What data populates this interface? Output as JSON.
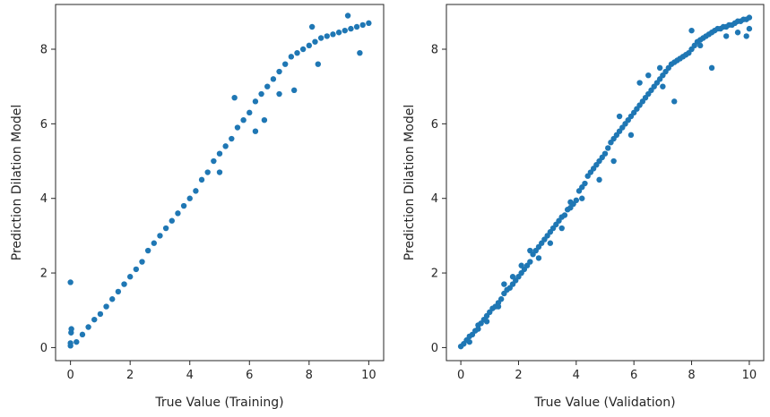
{
  "chart_data": [
    {
      "type": "scatter",
      "xlabel": "True Value (Training)",
      "ylabel": "Prediction Dilation Model",
      "xlim": [
        -0.5,
        10.5
      ],
      "ylim": [
        -0.35,
        9.2
      ],
      "xticks": [
        0,
        2,
        4,
        6,
        8,
        10
      ],
      "yticks": [
        0,
        2,
        4,
        6,
        8
      ],
      "xtick_labels": [
        "0",
        "2",
        "4",
        "6",
        "8",
        "10"
      ],
      "ytick_labels": [
        "0",
        "2",
        "4",
        "6",
        "8"
      ],
      "grid": false,
      "series": [
        {
          "color": "#1f77b4",
          "points": [
            [
              0.0,
              0.05
            ],
            [
              0.0,
              0.12
            ],
            [
              0.02,
              0.4
            ],
            [
              0.03,
              0.5
            ],
            [
              0.0,
              1.75
            ],
            [
              0.2,
              0.15
            ],
            [
              0.4,
              0.35
            ],
            [
              0.6,
              0.55
            ],
            [
              0.8,
              0.75
            ],
            [
              1.0,
              0.9
            ],
            [
              1.2,
              1.1
            ],
            [
              1.4,
              1.3
            ],
            [
              1.6,
              1.5
            ],
            [
              1.8,
              1.7
            ],
            [
              2.0,
              1.9
            ],
            [
              2.2,
              2.1
            ],
            [
              2.4,
              2.3
            ],
            [
              2.6,
              2.6
            ],
            [
              2.8,
              2.8
            ],
            [
              3.0,
              3.0
            ],
            [
              3.2,
              3.2
            ],
            [
              3.4,
              3.4
            ],
            [
              3.6,
              3.6
            ],
            [
              3.8,
              3.8
            ],
            [
              4.0,
              4.0
            ],
            [
              4.2,
              4.2
            ],
            [
              4.4,
              4.5
            ],
            [
              4.6,
              4.7
            ],
            [
              4.8,
              5.0
            ],
            [
              5.0,
              5.2
            ],
            [
              5.2,
              5.4
            ],
            [
              5.4,
              5.6
            ],
            [
              5.6,
              5.9
            ],
            [
              5.8,
              6.1
            ],
            [
              6.0,
              6.3
            ],
            [
              6.2,
              6.6
            ],
            [
              6.4,
              6.8
            ],
            [
              6.6,
              7.0
            ],
            [
              6.8,
              7.2
            ],
            [
              7.0,
              7.4
            ],
            [
              7.2,
              7.6
            ],
            [
              7.4,
              7.8
            ],
            [
              7.6,
              7.9
            ],
            [
              7.8,
              8.0
            ],
            [
              8.0,
              8.1
            ],
            [
              8.2,
              8.2
            ],
            [
              8.4,
              8.3
            ],
            [
              8.6,
              8.35
            ],
            [
              8.8,
              8.4
            ],
            [
              9.0,
              8.45
            ],
            [
              9.2,
              8.5
            ],
            [
              9.4,
              8.55
            ],
            [
              9.6,
              8.6
            ],
            [
              9.8,
              8.65
            ],
            [
              10.0,
              8.7
            ],
            [
              5.5,
              6.7
            ],
            [
              6.2,
              5.8
            ],
            [
              7.5,
              6.9
            ],
            [
              8.3,
              7.6
            ],
            [
              9.7,
              7.9
            ],
            [
              6.5,
              6.1
            ],
            [
              7.0,
              6.8
            ],
            [
              8.1,
              8.6
            ],
            [
              9.3,
              8.9
            ],
            [
              5.0,
              4.7
            ]
          ]
        }
      ]
    },
    {
      "type": "scatter",
      "xlabel": "True Value (Validation)",
      "ylabel": "Prediction Dilation Model",
      "xlim": [
        -0.5,
        10.5
      ],
      "ylim": [
        -0.35,
        9.2
      ],
      "xticks": [
        0,
        2,
        4,
        6,
        8,
        10
      ],
      "yticks": [
        0,
        2,
        4,
        6,
        8
      ],
      "xtick_labels": [
        "0",
        "2",
        "4",
        "6",
        "8",
        "10"
      ],
      "ytick_labels": [
        "0",
        "2",
        "4",
        "6",
        "8"
      ],
      "grid": false,
      "series": [
        {
          "color": "#1f77b4",
          "points": [
            [
              0.0,
              0.03
            ],
            [
              0.1,
              0.1
            ],
            [
              0.2,
              0.2
            ],
            [
              0.3,
              0.3
            ],
            [
              0.4,
              0.35
            ],
            [
              0.5,
              0.45
            ],
            [
              0.6,
              0.6
            ],
            [
              0.7,
              0.65
            ],
            [
              0.8,
              0.75
            ],
            [
              0.9,
              0.85
            ],
            [
              1.0,
              0.95
            ],
            [
              1.1,
              1.05
            ],
            [
              1.2,
              1.1
            ],
            [
              1.3,
              1.2
            ],
            [
              1.4,
              1.3
            ],
            [
              1.5,
              1.45
            ],
            [
              1.6,
              1.55
            ],
            [
              1.7,
              1.6
            ],
            [
              1.8,
              1.7
            ],
            [
              1.9,
              1.8
            ],
            [
              2.0,
              1.9
            ],
            [
              2.1,
              2.0
            ],
            [
              2.2,
              2.1
            ],
            [
              2.3,
              2.2
            ],
            [
              2.4,
              2.3
            ],
            [
              2.5,
              2.5
            ],
            [
              2.6,
              2.6
            ],
            [
              2.7,
              2.7
            ],
            [
              2.8,
              2.8
            ],
            [
              2.9,
              2.9
            ],
            [
              3.0,
              3.0
            ],
            [
              3.1,
              3.1
            ],
            [
              3.2,
              3.2
            ],
            [
              3.3,
              3.3
            ],
            [
              3.4,
              3.4
            ],
            [
              3.5,
              3.5
            ],
            [
              3.6,
              3.55
            ],
            [
              3.7,
              3.7
            ],
            [
              3.8,
              3.75
            ],
            [
              3.9,
              3.85
            ],
            [
              4.0,
              3.95
            ],
            [
              4.1,
              4.2
            ],
            [
              4.2,
              4.3
            ],
            [
              4.3,
              4.4
            ],
            [
              4.4,
              4.6
            ],
            [
              4.5,
              4.7
            ],
            [
              4.6,
              4.8
            ],
            [
              4.7,
              4.9
            ],
            [
              4.8,
              5.0
            ],
            [
              4.9,
              5.1
            ],
            [
              5.0,
              5.2
            ],
            [
              5.1,
              5.35
            ],
            [
              5.2,
              5.5
            ],
            [
              5.3,
              5.6
            ],
            [
              5.4,
              5.7
            ],
            [
              5.5,
              5.8
            ],
            [
              5.6,
              5.9
            ],
            [
              5.7,
              6.0
            ],
            [
              5.8,
              6.1
            ],
            [
              5.9,
              6.2
            ],
            [
              6.0,
              6.3
            ],
            [
              6.1,
              6.4
            ],
            [
              6.2,
              6.5
            ],
            [
              6.3,
              6.6
            ],
            [
              6.4,
              6.7
            ],
            [
              6.5,
              6.8
            ],
            [
              6.6,
              6.9
            ],
            [
              6.7,
              7.0
            ],
            [
              6.8,
              7.1
            ],
            [
              6.9,
              7.2
            ],
            [
              7.0,
              7.3
            ],
            [
              7.1,
              7.4
            ],
            [
              7.2,
              7.5
            ],
            [
              7.3,
              7.6
            ],
            [
              7.4,
              7.65
            ],
            [
              7.5,
              7.7
            ],
            [
              7.6,
              7.75
            ],
            [
              7.7,
              7.8
            ],
            [
              7.8,
              7.85
            ],
            [
              7.9,
              7.9
            ],
            [
              8.0,
              8.0
            ],
            [
              8.1,
              8.1
            ],
            [
              8.2,
              8.2
            ],
            [
              8.3,
              8.25
            ],
            [
              8.4,
              8.3
            ],
            [
              8.5,
              8.35
            ],
            [
              8.6,
              8.4
            ],
            [
              8.7,
              8.45
            ],
            [
              8.8,
              8.5
            ],
            [
              8.9,
              8.55
            ],
            [
              9.0,
              8.55
            ],
            [
              9.1,
              8.6
            ],
            [
              9.2,
              8.6
            ],
            [
              9.3,
              8.65
            ],
            [
              9.4,
              8.65
            ],
            [
              9.5,
              8.7
            ],
            [
              9.6,
              8.75
            ],
            [
              9.7,
              8.75
            ],
            [
              9.8,
              8.8
            ],
            [
              9.9,
              8.8
            ],
            [
              10.0,
              8.85
            ],
            [
              10.0,
              8.55
            ],
            [
              9.9,
              8.35
            ],
            [
              8.7,
              7.5
            ],
            [
              7.4,
              6.6
            ],
            [
              6.9,
              7.5
            ],
            [
              6.2,
              7.1
            ],
            [
              5.9,
              5.7
            ],
            [
              5.3,
              5.0
            ],
            [
              4.8,
              4.5
            ],
            [
              4.2,
              4.0
            ],
            [
              3.8,
              3.9
            ],
            [
              3.5,
              3.2
            ],
            [
              3.1,
              2.8
            ],
            [
              2.7,
              2.4
            ],
            [
              2.4,
              2.6
            ],
            [
              2.1,
              2.2
            ],
            [
              1.8,
              1.9
            ],
            [
              1.5,
              1.7
            ],
            [
              1.3,
              1.1
            ],
            [
              0.9,
              0.7
            ],
            [
              0.6,
              0.5
            ],
            [
              0.3,
              0.15
            ],
            [
              8.0,
              8.5
            ],
            [
              8.3,
              8.1
            ],
            [
              9.2,
              8.35
            ],
            [
              9.6,
              8.45
            ],
            [
              7.0,
              7.0
            ],
            [
              6.5,
              7.3
            ],
            [
              5.5,
              6.2
            ]
          ]
        }
      ]
    }
  ]
}
